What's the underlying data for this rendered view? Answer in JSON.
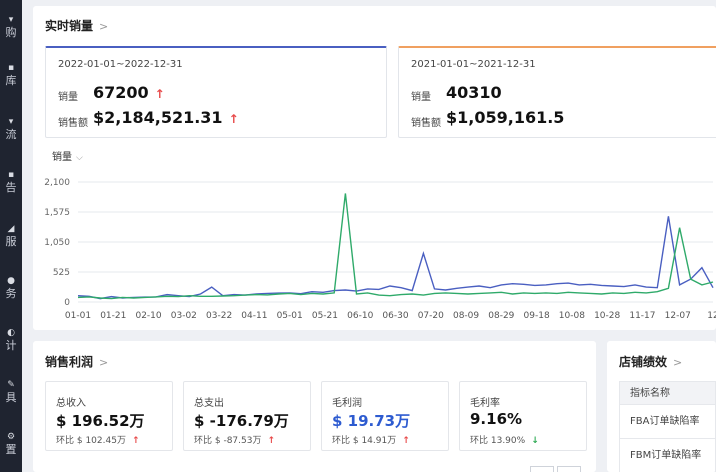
{
  "sidebar": {
    "items": [
      {
        "label": "购",
        "icon": "cart-icon"
      },
      {
        "label": "库",
        "icon": "box-icon"
      },
      {
        "label": "流",
        "icon": "truck-icon"
      },
      {
        "label": "告",
        "icon": "megaphone-icon"
      },
      {
        "label": "服",
        "icon": "headset-icon"
      },
      {
        "label": "务",
        "icon": "finance-icon"
      },
      {
        "label": "计",
        "icon": "chart-icon"
      },
      {
        "label": "具",
        "icon": "tool-icon"
      },
      {
        "label": "置",
        "icon": "gear-icon"
      }
    ]
  },
  "realtime": {
    "title": "实时销量",
    "period_a": {
      "range": "2022-01-01~2022-12-31",
      "qty_label": "销量",
      "qty_value": "67200",
      "amount_label": "销售额",
      "amount_value": "$2,184,521.31"
    },
    "period_b": {
      "range": "2021-01-01~2021-12-31",
      "qty_label": "销量",
      "qty_value": "40310",
      "amount_label": "销售额",
      "amount_value": "$1,059,161.5"
    },
    "metric_select": "销量"
  },
  "chart_data": {
    "type": "line",
    "y_ticks": [
      "2,100",
      "1,575",
      "1,050",
      "525",
      "0"
    ],
    "x_ticks": [
      "01-01",
      "01-21",
      "02-10",
      "03-02",
      "03-22",
      "04-11",
      "05-01",
      "05-21",
      "06-10",
      "06-30",
      "07-20",
      "08-09",
      "08-29",
      "09-18",
      "10-08",
      "10-28",
      "11-17",
      "12-07",
      "12"
    ],
    "ylim": [
      0,
      2100
    ],
    "grid": true,
    "colors": {
      "series_a": "#4a5fc1",
      "series_b": "#2faa6a"
    },
    "series": [
      {
        "values": [
          110,
          100,
          60,
          95,
          70,
          80,
          85,
          90,
          130,
          110,
          95,
          140,
          260,
          110,
          130,
          120,
          140,
          150,
          155,
          160,
          145,
          180,
          170,
          200,
          210,
          190,
          230,
          220,
          280,
          250,
          200,
          850,
          230,
          210,
          240,
          260,
          280,
          250,
          300,
          320,
          310,
          290,
          300,
          320,
          330,
          300,
          310,
          290,
          280,
          270,
          300,
          260,
          250,
          1500,
          300,
          400,
          600,
          250
        ]
      },
      {
        "values": [
          80,
          90,
          70,
          60,
          80,
          70,
          80,
          90,
          100,
          95,
          110,
          100,
          100,
          105,
          110,
          120,
          130,
          125,
          140,
          150,
          130,
          150,
          140,
          160,
          1900,
          140,
          160,
          120,
          110,
          130,
          140,
          120,
          150,
          160,
          150,
          140,
          150,
          160,
          170,
          140,
          160,
          150,
          160,
          150,
          170,
          160,
          150,
          140,
          160,
          150,
          170,
          160,
          180,
          240,
          1300,
          400,
          300,
          350
        ]
      }
    ]
  },
  "profit": {
    "title": "销售利润",
    "kpis": [
      {
        "label": "总收入",
        "value": "$ 196.52万",
        "sub": "环比 $ 102.45万",
        "trend": "↑"
      },
      {
        "label": "总支出",
        "value": "$ -176.79万",
        "sub": "环比 $ -87.53万",
        "trend": "↑"
      },
      {
        "label": "毛利润",
        "value": "$ 19.73万",
        "sub": "环比 $ 14.91万",
        "trend": "↑"
      },
      {
        "label": "毛利率",
        "value": "9.16%",
        "sub": "环比 13.90%",
        "trend": "↓"
      }
    ]
  },
  "shop": {
    "title": "店铺绩效",
    "header": "指标名称",
    "rows": [
      "FBA订单缺陷率",
      "FBM订单缺陷率"
    ]
  }
}
